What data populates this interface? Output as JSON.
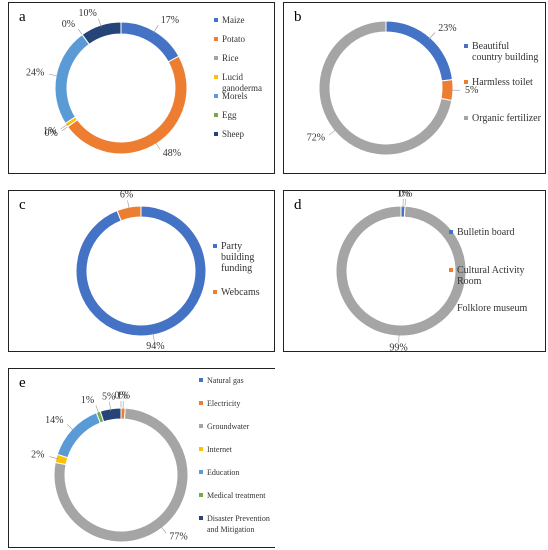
{
  "chart_data": [
    {
      "type": "donut",
      "title": "a",
      "categories": [
        "Maize",
        "Potato",
        "Rice",
        "Lucid ganoderma",
        "Morels",
        "Egg",
        "Sheep"
      ],
      "values": [
        17,
        48,
        0,
        1,
        24,
        0,
        10
      ],
      "value_labels": [
        "17%",
        "48%",
        "0%",
        "1%",
        "24%",
        "0%",
        "10%"
      ],
      "colors": [
        "#4472c4",
        "#ed7d31",
        "#a5a5a5",
        "#ffc000",
        "#5b9bd5",
        "#70ad47",
        "#264478"
      ]
    },
    {
      "type": "donut",
      "title": "b",
      "categories": [
        "Beautiful country building",
        "Harmless toilet",
        "Organic fertilizer"
      ],
      "values": [
        23,
        5,
        72
      ],
      "value_labels": [
        "23%",
        "5%",
        "72%"
      ],
      "colors": [
        "#4472c4",
        "#ed7d31",
        "#a5a5a5"
      ]
    },
    {
      "type": "donut",
      "title": "c",
      "categories": [
        "Party building funding",
        "Webcams"
      ],
      "values": [
        94,
        6
      ],
      "value_labels": [
        "94%",
        "6%"
      ],
      "colors": [
        "#4472c4",
        "#ed7d31"
      ]
    },
    {
      "type": "donut",
      "title": "d",
      "categories": [
        "Bulletin board",
        "Cultural Activity Room",
        "Folklore museum"
      ],
      "values": [
        1,
        0,
        99
      ],
      "value_labels": [
        "1%",
        "0%",
        "99%"
      ],
      "colors": [
        "#4472c4",
        "#ed7d31",
        "#a5a5a5"
      ]
    },
    {
      "type": "donut",
      "title": "e",
      "categories": [
        "Natural gas",
        "Electricity",
        "Groundwater",
        "Internet",
        "Education",
        "Medical treatment",
        "Disaster Prevention and Mitigation"
      ],
      "values": [
        0,
        1,
        77,
        2,
        14,
        1,
        5
      ],
      "value_labels": [
        "0%",
        "1%",
        "77%",
        "2%",
        "14%",
        "1%",
        "5%"
      ],
      "colors": [
        "#4472c4",
        "#ed7d31",
        "#a5a5a5",
        "#ffc000",
        "#5b9bd5",
        "#70ad47",
        "#264478"
      ]
    }
  ]
}
